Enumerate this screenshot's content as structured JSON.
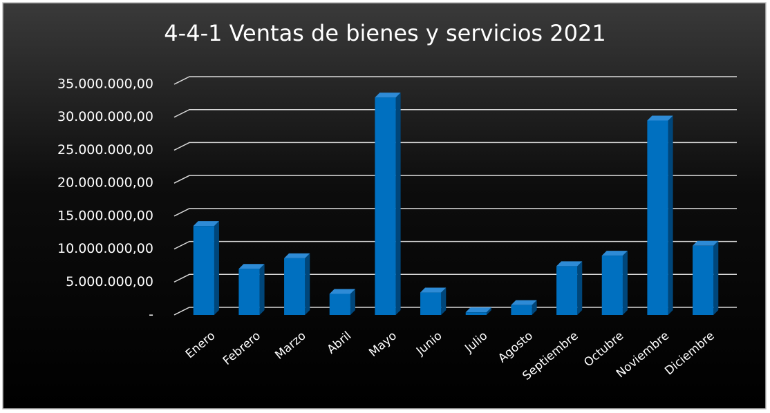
{
  "chart_data": {
    "type": "bar3d",
    "title": "4-4-1 Ventas de bienes y servicios 2021",
    "categories": [
      "Enero",
      "Febrero",
      "Marzo",
      "Abril",
      "Mayo",
      "Junio",
      "Julio",
      "Agosto",
      "Septiembre",
      "Octubre",
      "Noviembre",
      "Diciembre"
    ],
    "values": [
      13500000,
      7000000,
      8600000,
      3200000,
      33000000,
      3400000,
      400000,
      1500000,
      7400000,
      9000000,
      29500000,
      10500000
    ],
    "color": "#0070c0",
    "ylim": [
      0,
      35000000
    ],
    "yticks": [
      {
        "value": 0,
        "label": "-"
      },
      {
        "value": 5000000,
        "label": "5.000.000,00"
      },
      {
        "value": 10000000,
        "label": "10.000.000,00"
      },
      {
        "value": 15000000,
        "label": "15.000.000,00"
      },
      {
        "value": 20000000,
        "label": "20.000.000,00"
      },
      {
        "value": 25000000,
        "label": "25.000.000,00"
      },
      {
        "value": 30000000,
        "label": "30.000.000,00"
      },
      {
        "value": 35000000,
        "label": "35.000.000,00"
      }
    ],
    "grid": true
  }
}
